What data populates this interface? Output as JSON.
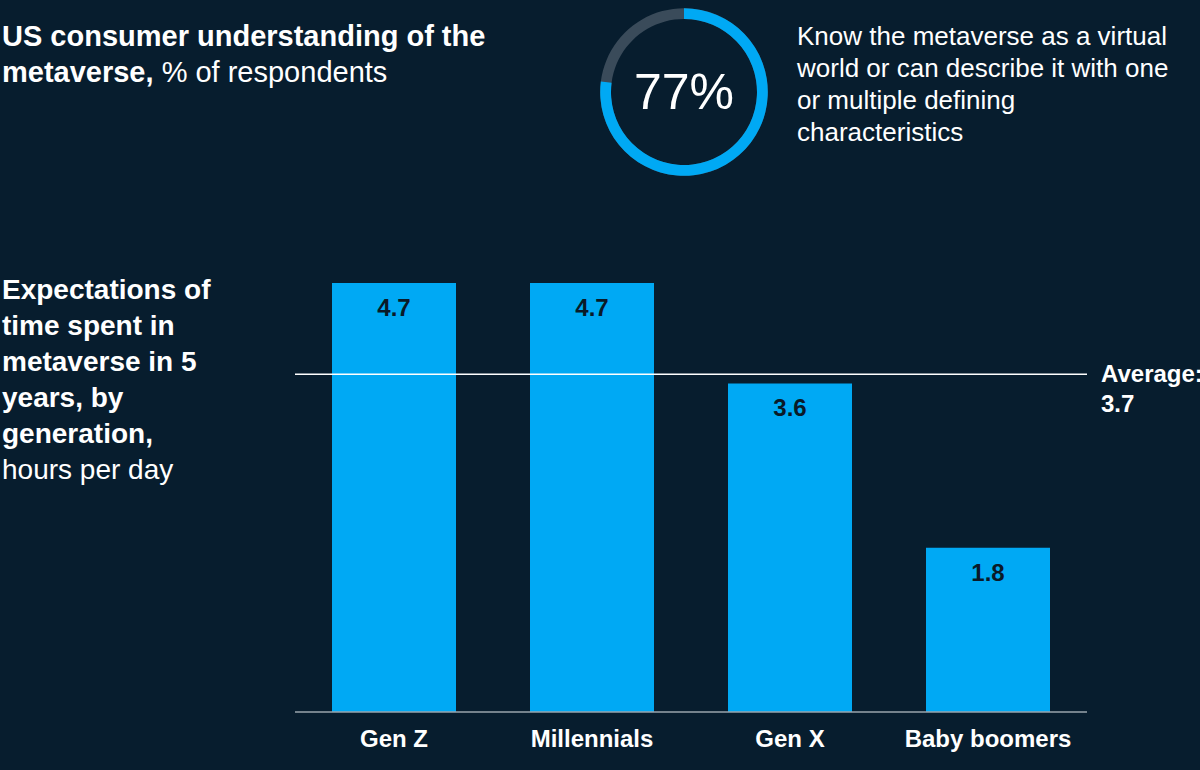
{
  "chart_data": [
    {
      "type": "radial_bar",
      "title": "US consumer understanding of the metaverse,",
      "subtitle": "% of respondents",
      "values": [
        77
      ],
      "value_labels": [
        "77%"
      ],
      "ylim": [
        0,
        100
      ],
      "color": "#00a9f4",
      "annotation": "Know the metaverse as a virtual world or can describe it with one or multiple defining characteristics"
    },
    {
      "type": "bar",
      "title": "Expectations of time spent in metaverse in 5 years, by generation,",
      "subtitle": "hours per day",
      "categories": [
        "Gen Z",
        "Millennials",
        "Gen X",
        "Baby boomers"
      ],
      "values": [
        4.7,
        4.7,
        3.6,
        1.8
      ],
      "color": "#00a9f4",
      "ylim": [
        0,
        4.7
      ],
      "yticks": [],
      "data_labels": true,
      "tick_labels": "x",
      "reference_lines": [
        {
          "value": 3.7,
          "label": "Average:"
        }
      ]
    }
  ]
}
